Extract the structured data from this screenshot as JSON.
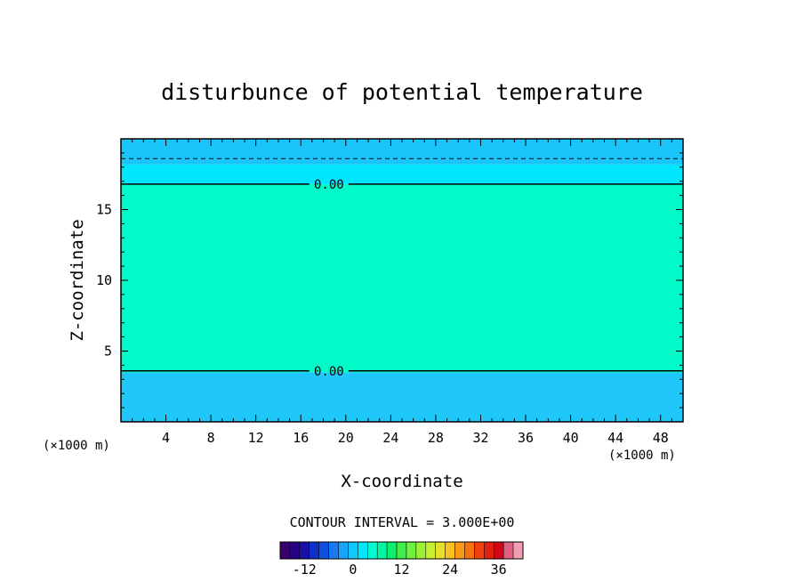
{
  "chart_data": {
    "type": "contour",
    "title": "disturbunce of potential temperature",
    "xlabel": "X-coordinate",
    "ylabel": "Z-coordinate",
    "x_unit": "(×1000 m)",
    "z_unit": "(×1000 m)",
    "xlim": [
      0,
      50
    ],
    "ylim": [
      0,
      20
    ],
    "x_ticks": [
      4,
      8,
      12,
      16,
      20,
      24,
      28,
      32,
      36,
      40,
      44,
      48
    ],
    "y_ticks": [
      5,
      10,
      15
    ],
    "field_bands": [
      {
        "z_range": [
          0,
          3.5
        ],
        "value": -4.5,
        "color": "#1fc8f8"
      },
      {
        "z_range": [
          3.5,
          16.8
        ],
        "value": 1.5,
        "color": "#00fbc8"
      },
      {
        "z_range": [
          16.8,
          18.2
        ],
        "value": -1.5,
        "color": "#00e6ff"
      },
      {
        "z_range": [
          18.2,
          20
        ],
        "value": -4.5,
        "color": "#18c4fa"
      }
    ],
    "contours": [
      {
        "level": 0.0,
        "label": "0.00",
        "style": "solid",
        "z_approx": 16.8
      },
      {
        "level": 0.0,
        "label": "0.00",
        "style": "solid",
        "z_approx": 3.6
      },
      {
        "level": -3.0,
        "label": "",
        "style": "dashed",
        "z_approx": 18.6
      }
    ],
    "contour_interval": "CONTOUR INTERVAL = 3.000E+00",
    "colorbar": {
      "min": -18,
      "max": 42,
      "step": 3,
      "ticks": [
        -12,
        0,
        12,
        24,
        36
      ],
      "colors": [
        "#3a006a",
        "#2a0088",
        "#1a10a8",
        "#1030c8",
        "#1050e0",
        "#1a78f0",
        "#18a4f8",
        "#10c8fc",
        "#00e8ff",
        "#00fcd0",
        "#00f8a0",
        "#10f070",
        "#40f048",
        "#70f040",
        "#a0f038",
        "#c8f030",
        "#e8e028",
        "#f8c020",
        "#f89818",
        "#f87010",
        "#f04010",
        "#e02010",
        "#d00818",
        "#e06080",
        "#f0a0b0"
      ]
    }
  }
}
